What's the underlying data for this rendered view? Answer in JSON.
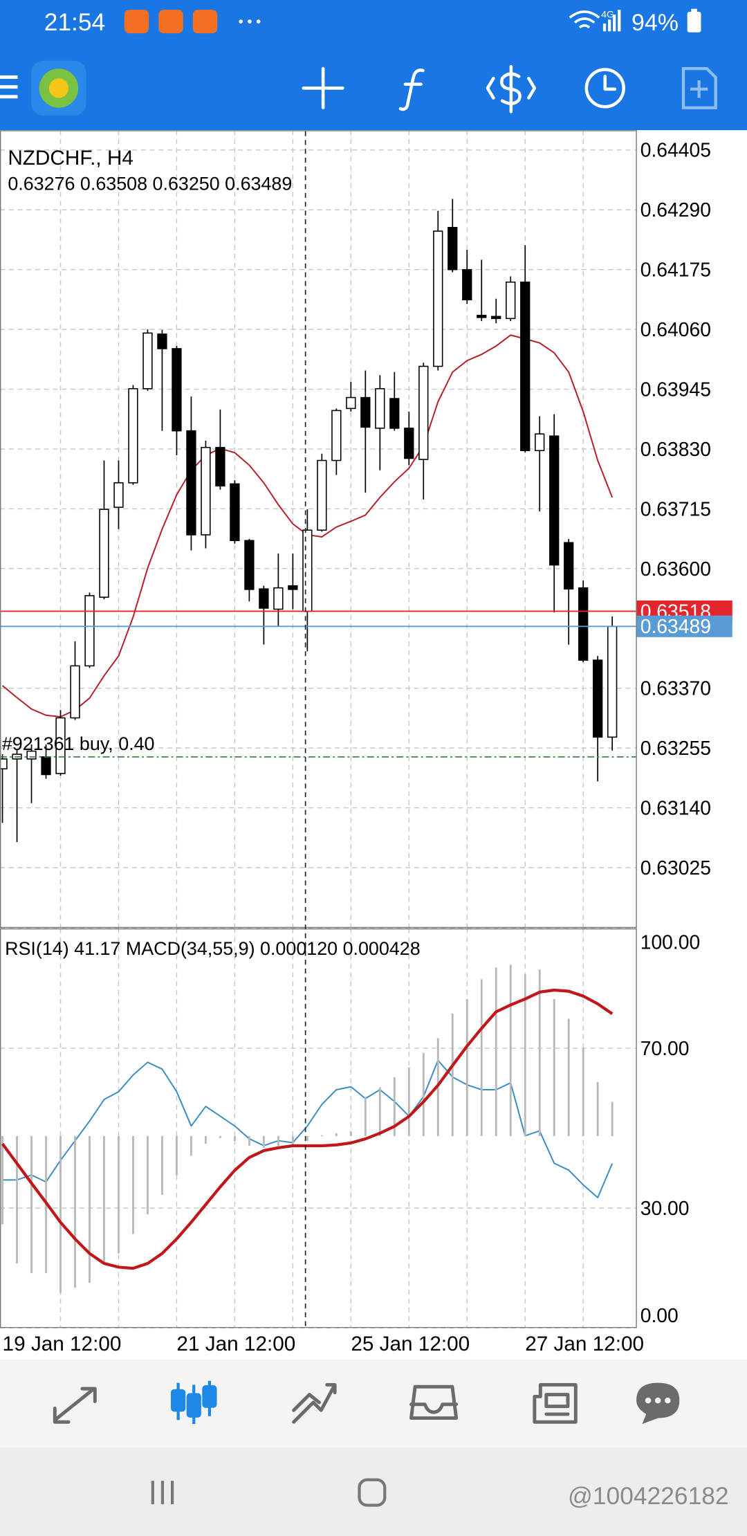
{
  "status_bar": {
    "time": "21:54",
    "network": "4G",
    "battery": "94%"
  },
  "chart_data": [
    {
      "type": "candlestick",
      "title": "NZDCHF., H4",
      "subtitle": "0.63276 0.63508 0.63250 0.63489",
      "open": [
        0.63215,
        0.63234,
        0.63234,
        0.63238,
        0.63206,
        0.63313,
        0.63413,
        0.63545,
        0.63718,
        0.63765,
        0.63946,
        0.64051,
        0.64023,
        0.63865,
        0.63665,
        0.63833,
        0.63763,
        0.63654,
        0.63561,
        0.63522,
        0.63567,
        0.63518,
        0.63674,
        0.63808,
        0.63908,
        0.63929,
        0.6387,
        0.63927,
        0.6387,
        0.6381,
        0.63989,
        0.64256,
        0.64175,
        0.64087,
        0.64085,
        0.64081,
        0.64151,
        0.63827,
        0.63855,
        0.6365,
        0.63563,
        0.63424,
        0.63276
      ],
      "high": [
        0.63243,
        0.63253,
        0.63262,
        0.63262,
        0.63328,
        0.6346,
        0.63554,
        0.63808,
        0.63808,
        0.63953,
        0.6406,
        0.64059,
        0.64028,
        0.63931,
        0.63846,
        0.63906,
        0.6377,
        0.63657,
        0.63567,
        0.63629,
        0.63629,
        0.63714,
        0.63821,
        0.63908,
        0.63959,
        0.63981,
        0.63972,
        0.63978,
        0.63902,
        0.63996,
        0.64288,
        0.64311,
        0.64213,
        0.64194,
        0.64119,
        0.64162,
        0.64222,
        0.63893,
        0.63897,
        0.63657,
        0.63577,
        0.63432,
        0.63508
      ],
      "low": [
        0.63111,
        0.63074,
        0.63149,
        0.63196,
        0.63202,
        0.63309,
        0.63409,
        0.63541,
        0.63676,
        0.63761,
        0.63942,
        0.63865,
        0.63818,
        0.63635,
        0.63639,
        0.63752,
        0.63648,
        0.63537,
        0.63454,
        0.63488,
        0.63522,
        0.63441,
        0.63671,
        0.6378,
        0.63902,
        0.63746,
        0.63789,
        0.63865,
        0.63799,
        0.63733,
        0.63981,
        0.6417,
        0.64109,
        0.64076,
        0.64072,
        0.64076,
        0.63823,
        0.6371,
        0.63516,
        0.63454,
        0.6342,
        0.63191,
        0.6325
      ],
      "close": [
        0.63234,
        0.63243,
        0.63249,
        0.63204,
        0.63313,
        0.63413,
        0.63548,
        0.63714,
        0.63765,
        0.63946,
        0.64053,
        0.64023,
        0.63865,
        0.63665,
        0.63833,
        0.63759,
        0.63654,
        0.6356,
        0.63524,
        0.63563,
        0.6356,
        0.63674,
        0.63808,
        0.63904,
        0.63929,
        0.63872,
        0.63946,
        0.6387,
        0.63812,
        0.63989,
        0.64249,
        0.64175,
        0.64117,
        0.64083,
        0.64081,
        0.64151,
        0.63827,
        0.63859,
        0.63607,
        0.63561,
        0.63424,
        0.63276,
        0.63489
      ],
      "up_color": "#ffffff",
      "down_color": "#000000",
      "series": [
        {
          "color": "#b3202a",
          "values": [
            0.63375,
            0.63352,
            0.6333,
            0.63318,
            0.63315,
            0.63328,
            0.63351,
            0.63394,
            0.63432,
            0.63507,
            0.63601,
            0.63676,
            0.63742,
            0.63789,
            0.63818,
            0.63831,
            0.63823,
            0.63799,
            0.63765,
            0.63723,
            0.63686,
            0.63665,
            0.63661,
            0.6368,
            0.63691,
            0.63703,
            0.63737,
            0.63767,
            0.63793,
            0.63836,
            0.63921,
            0.63978,
            0.64,
            0.64012,
            0.64028,
            0.64049,
            0.64042,
            0.64034,
            0.64015,
            0.63978,
            0.63902,
            0.63808,
            0.63737
          ]
        }
      ],
      "price_lines": [
        {
          "value": 0.63518,
          "color": "#e3262b"
        },
        {
          "value": 0.63489,
          "color": "#5b9bd5"
        }
      ],
      "order_line": {
        "value": 0.63238,
        "label": "#921361 buy, 0.40",
        "color": "#2e7d32"
      },
      "ylim": [
        0.6291,
        0.64443
      ],
      "yticks": [
        0.64405,
        {
          "value": 0.6429,
          "label": "0.64290"
        },
        0.64175,
        {
          "value": 0.6406,
          "label": "0.64060"
        },
        0.63945,
        {
          "value": 0.6383,
          "label": "0.63830"
        },
        0.63715,
        {
          "value": 0.636,
          "label": "0.63600"
        },
        {
          "value": 0.6337,
          "label": "0.63370"
        },
        0.63255,
        {
          "value": 0.6314,
          "label": "0.63140"
        },
        0.63025
      ],
      "grid": true
    },
    {
      "type": "line",
      "title": "RSI(14) 41.17 MACD(34,55,9) 0.000120 0.000428",
      "categories": [
        "19 Jan 12:00",
        null,
        null,
        null,
        null,
        null,
        null,
        null,
        null,
        null,
        null,
        null,
        "21 Jan 12:00",
        null,
        null,
        null,
        null,
        null,
        null,
        null,
        null,
        null,
        null,
        null,
        "25 Jan 12:00",
        null,
        null,
        null,
        null,
        null,
        null,
        null,
        null,
        null,
        null,
        null,
        "27 Jan 12:00",
        null,
        null,
        null,
        null,
        null,
        null
      ],
      "series": [
        {
          "color": "#3b8cc4",
          "values": [
            37.06,
            37.06,
            38.28,
            36.56,
            41.96,
            46.87,
            51.78,
            57.18,
            59.14,
            63.31,
            66.5,
            64.79,
            59.14,
            50.55,
            55.46,
            53.01,
            50.55,
            47.36,
            45.64,
            46.87,
            46.38,
            50.55,
            55.95,
            59.63,
            60.37,
            57.42,
            59.63,
            56.69,
            53.01,
            57.91,
            66.99,
            62.82,
            60.86,
            59.63,
            59.63,
            61.35,
            48.1,
            49.33,
            41.23,
            39.51,
            35.83,
            32.64,
            41.17
          ]
        },
        {
          "type": "bar",
          "axis": "y2",
          "color": "#b8b8b8",
          "values": [
            -0.000309,
            -0.000446,
            -0.00048,
            -0.00048,
            -0.000549,
            -0.000531,
            -0.000514,
            -0.000446,
            -0.000411,
            -0.000343,
            -0.000274,
            -0.000206,
            -0.000137,
            -6.9e-05,
            -2.7e-05,
            -7e-06,
            -1.7e-05,
            -3.4e-05,
            -4.1e-05,
            -3.4e-05,
            -3.4e-05,
            -1.7e-05,
            3e-06,
            1e-05,
            1.7e-05,
            0.000137,
            0.000171,
            0.000206,
            0.00024,
            0.000291,
            0.000343,
            0.000429,
            0.00048,
            0.000549,
            0.00059,
            0.0006,
            0.000566,
            0.000583,
            0.00048,
            0.000411,
            0.000309,
            0.000189,
            0.00012
          ]
        },
        {
          "axis": "y2",
          "color": "#c0181a",
          "values": [
            -2.7e-05,
            -9.6e-05,
            -0.000165,
            -0.000233,
            -0.000302,
            -0.00036,
            -0.000411,
            -0.000446,
            -0.000459,
            -0.000463,
            -0.000446,
            -0.000411,
            -0.00036,
            -0.000302,
            -0.00024,
            -0.000178,
            -0.00012,
            -7.5e-05,
            -5.1e-05,
            -4.1e-05,
            -3.4e-05,
            -3.4e-05,
            -3.4e-05,
            -3.1e-05,
            -2.4e-05,
            -1e-05,
            1e-05,
            3.4e-05,
            6.9e-05,
            0.00012,
            0.000178,
            0.000247,
            0.000315,
            0.000377,
            0.000435,
            0.000459,
            0.00048,
            0.000504,
            0.000511,
            0.000507,
            0.00049,
            0.000463,
            0.000428
          ]
        }
      ],
      "ylim": [
        0,
        100
      ],
      "yticks": [
        {
          "value": 100,
          "label": "100.00"
        },
        {
          "value": 70,
          "label": "70.00"
        },
        {
          "value": 30,
          "label": "30.00"
        },
        {
          "value": 0,
          "label": "0.00"
        }
      ],
      "y2lim": [
        -0.000672,
        0.000727
      ],
      "grid": true
    }
  ],
  "watermark": "@1004226182"
}
